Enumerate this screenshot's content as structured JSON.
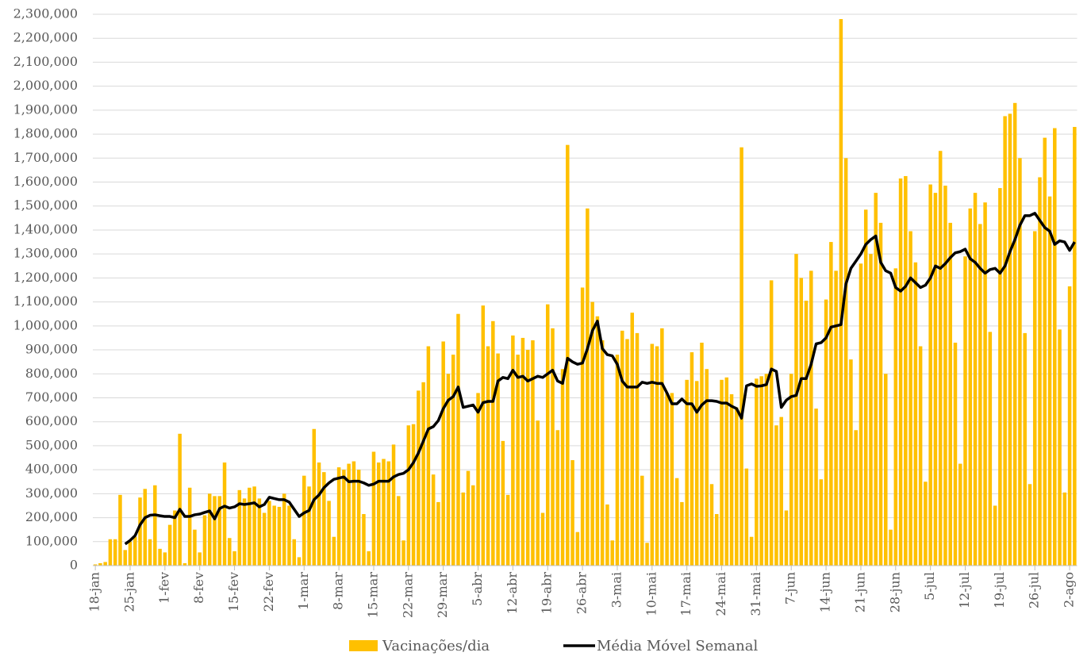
{
  "chart_data": {
    "type": "bar",
    "categories": [
      "18-jan",
      null,
      null,
      null,
      null,
      null,
      null,
      "25-jan",
      null,
      null,
      null,
      null,
      null,
      null,
      "1-fev",
      null,
      null,
      null,
      null,
      null,
      null,
      "8-fev",
      null,
      null,
      null,
      null,
      null,
      null,
      "15-fev",
      null,
      null,
      null,
      null,
      null,
      null,
      "22-fev",
      null,
      null,
      null,
      null,
      null,
      null,
      "1-mar",
      null,
      null,
      null,
      null,
      null,
      null,
      "8-mar",
      null,
      null,
      null,
      null,
      null,
      null,
      "15-mar",
      null,
      null,
      null,
      null,
      null,
      null,
      "22-mar",
      null,
      null,
      null,
      null,
      null,
      null,
      "29-mar",
      null,
      null,
      null,
      null,
      null,
      null,
      "5-abr",
      null,
      null,
      null,
      null,
      null,
      null,
      "12-abr",
      null,
      null,
      null,
      null,
      null,
      null,
      "19-abr",
      null,
      null,
      null,
      null,
      null,
      null,
      "26-abr",
      null,
      null,
      null,
      null,
      null,
      null,
      "3-mai",
      null,
      null,
      null,
      null,
      null,
      null,
      "10-mai",
      null,
      null,
      null,
      null,
      null,
      null,
      "17-mai",
      null,
      null,
      null,
      null,
      null,
      null,
      "24-mai",
      null,
      null,
      null,
      null,
      null,
      null,
      "31-mai",
      null,
      null,
      null,
      null,
      null,
      null,
      "7-jun",
      null,
      null,
      null,
      null,
      null,
      null,
      "14-jun",
      null,
      null,
      null,
      null,
      null,
      null,
      "21-jun",
      null,
      null,
      null,
      null,
      null,
      null,
      "28-jun",
      null,
      null,
      null,
      null,
      null,
      null,
      "5-jul",
      null,
      null,
      null,
      null,
      null,
      null,
      "12-jul",
      null,
      null,
      null,
      null,
      null,
      null,
      "19-jul",
      null,
      null,
      null,
      null,
      null,
      null,
      "26-jul",
      null,
      null,
      null,
      null,
      null,
      null,
      "2-ago",
      null
    ],
    "series": [
      {
        "name": "Vacinações/dia",
        "type": "bar",
        "color": "#FFC000",
        "values": [
          5000,
          10000,
          15000,
          110000,
          110000,
          295000,
          65000,
          100000,
          120000,
          284000,
          320000,
          110000,
          335000,
          70000,
          55000,
          170000,
          230000,
          550000,
          10000,
          325000,
          150000,
          55000,
          210000,
          300000,
          290000,
          290000,
          430000,
          115000,
          60000,
          315000,
          280000,
          325000,
          330000,
          280000,
          220000,
          270000,
          250000,
          245000,
          300000,
          250000,
          110000,
          35000,
          375000,
          330000,
          570000,
          430000,
          390000,
          270000,
          120000,
          410000,
          400000,
          425000,
          435000,
          400000,
          215000,
          60000,
          475000,
          430000,
          445000,
          435000,
          505000,
          290000,
          105000,
          585000,
          590000,
          730000,
          765000,
          915000,
          380000,
          265000,
          935000,
          800000,
          880000,
          1050000,
          305000,
          395000,
          335000,
          720000,
          1085000,
          915000,
          1020000,
          885000,
          520000,
          295000,
          960000,
          880000,
          950000,
          900000,
          940000,
          605000,
          220000,
          1090000,
          990000,
          565000,
          820000,
          1755000,
          440000,
          140000,
          1160000,
          1490000,
          1100000,
          1040000,
          940000,
          255000,
          105000,
          880000,
          980000,
          945000,
          1055000,
          970000,
          375000,
          95000,
          925000,
          915000,
          990000,
          720000,
          720000,
          365000,
          265000,
          775000,
          890000,
          770000,
          930000,
          820000,
          340000,
          215000,
          775000,
          785000,
          715000,
          660000,
          1745000,
          405000,
          120000,
          780000,
          790000,
          800000,
          1190000,
          585000,
          620000,
          230000,
          800000,
          1300000,
          1200000,
          1105000,
          1230000,
          655000,
          360000,
          1110000,
          1350000,
          1230000,
          2280000,
          1700000,
          860000,
          565000,
          1260000,
          1485000,
          1300000,
          1555000,
          1430000,
          800000,
          150000,
          1240000,
          1615000,
          1625000,
          1395000,
          1265000,
          915000,
          350000,
          1590000,
          1555000,
          1730000,
          1585000,
          1430000,
          930000,
          425000,
          1290000,
          1490000,
          1555000,
          1425000,
          1515000,
          975000,
          250000,
          1575000,
          1875000,
          1885000,
          1930000,
          1700000,
          970000,
          340000,
          1395000,
          1620000,
          1785000,
          1540000,
          1825000,
          985000,
          305000,
          1165000,
          1830000
        ]
      },
      {
        "name": "Média Móvel Semanal",
        "type": "line",
        "color": "#000000",
        "values": [
          null,
          null,
          null,
          null,
          null,
          null,
          90000,
          105000,
          125000,
          170000,
          200000,
          210000,
          212000,
          208000,
          205000,
          205000,
          200000,
          235000,
          205000,
          205000,
          212000,
          215000,
          222000,
          228000,
          195000,
          238000,
          248000,
          240000,
          245000,
          258000,
          255000,
          258000,
          262000,
          245000,
          255000,
          285000,
          280000,
          275000,
          275000,
          265000,
          235000,
          205000,
          220000,
          230000,
          275000,
          295000,
          325000,
          345000,
          360000,
          365000,
          370000,
          350000,
          352000,
          352000,
          345000,
          335000,
          340000,
          352000,
          352000,
          352000,
          370000,
          380000,
          385000,
          400000,
          430000,
          470000,
          520000,
          570000,
          580000,
          605000,
          655000,
          690000,
          705000,
          745000,
          660000,
          665000,
          670000,
          640000,
          680000,
          685000,
          685000,
          770000,
          785000,
          780000,
          815000,
          785000,
          790000,
          770000,
          780000,
          790000,
          785000,
          800000,
          815000,
          770000,
          760000,
          865000,
          850000,
          840000,
          845000,
          905000,
          980000,
          1020000,
          905000,
          880000,
          875000,
          840000,
          770000,
          745000,
          745000,
          745000,
          765000,
          760000,
          765000,
          760000,
          760000,
          720000,
          675000,
          675000,
          695000,
          675000,
          675000,
          640000,
          670000,
          688000,
          688000,
          685000,
          678000,
          678000,
          665000,
          655000,
          615000,
          750000,
          758000,
          748000,
          750000,
          755000,
          820000,
          810000,
          660000,
          690000,
          705000,
          710000,
          780000,
          780000,
          840000,
          925000,
          930000,
          950000,
          995000,
          1000000,
          1005000,
          1175000,
          1240000,
          1270000,
          1300000,
          1340000,
          1360000,
          1375000,
          1265000,
          1230000,
          1220000,
          1160000,
          1145000,
          1165000,
          1200000,
          1180000,
          1160000,
          1170000,
          1200000,
          1250000,
          1240000,
          1260000,
          1285000,
          1305000,
          1310000,
          1320000,
          1280000,
          1265000,
          1240000,
          1220000,
          1235000,
          1240000,
          1220000,
          1250000,
          1310000,
          1360000,
          1420000,
          1460000,
          1460000,
          1470000,
          1440000,
          1410000,
          1395000,
          1340000,
          1355000,
          1350000,
          1315000,
          1350000
        ]
      }
    ],
    "ylim": [
      0,
      2300000
    ],
    "yticks": [
      0,
      {
        "value": 100000,
        "label": "100,000"
      },
      {
        "value": 200000,
        "label": "200,000"
      },
      {
        "value": 300000,
        "label": "300,000"
      },
      {
        "value": 400000,
        "label": "400,000"
      },
      {
        "value": 500000,
        "label": "500,000"
      },
      {
        "value": 600000,
        "label": "600,000"
      },
      {
        "value": 700000,
        "label": "700,000"
      },
      {
        "value": 800000,
        "label": "800,000"
      },
      {
        "value": 900000,
        "label": "900,000"
      },
      {
        "value": 1000000,
        "label": "1,000,000"
      },
      {
        "value": 1100000,
        "label": "1,100,000"
      },
      {
        "value": 1200000,
        "label": "1,200,000"
      },
      {
        "value": 1300000,
        "label": "1,300,000"
      },
      {
        "value": 1400000,
        "label": "1,400,000"
      },
      {
        "value": 1500000,
        "label": "1,500,000"
      },
      {
        "value": 1600000,
        "label": "1,600,000"
      },
      {
        "value": 1700000,
        "label": "1,700,000"
      },
      {
        "value": 1800000,
        "label": "1,800,000"
      },
      {
        "value": 1900000,
        "label": "1,900,000"
      },
      {
        "value": 2000000,
        "label": "2,000,000"
      },
      {
        "value": 2100000,
        "label": "2,100,000"
      },
      {
        "value": 2200000,
        "label": "2,200,000"
      },
      {
        "value": 2300000,
        "label": "2,300,000"
      }
    ],
    "grid": true,
    "legend": "bottom"
  }
}
